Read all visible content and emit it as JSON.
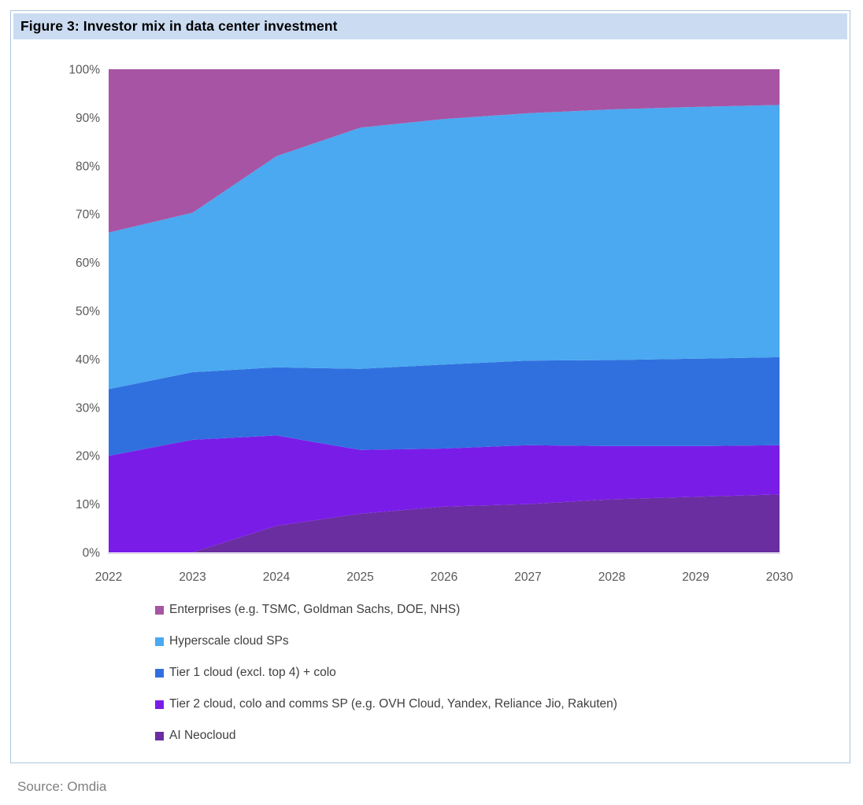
{
  "title": "Figure 3: Investor mix in data center investment",
  "source": "Source: Omdia",
  "colors": {
    "title_bar_bg": "#CBDCF2",
    "figure_border": "#ACC5E2",
    "axis_label_text": "#595959",
    "legend_text": "#3F3F3F",
    "source_text": "#7F7F7F",
    "axis_line": "#CCC8DC"
  },
  "chart_data": {
    "type": "area",
    "stacked": true,
    "unit": "percent",
    "title": "Figure 3: Investor mix in data center investment",
    "xlabel": "",
    "ylabel": "",
    "ylim": [
      0,
      100
    ],
    "grid": false,
    "legend_position": "bottom-left",
    "categories": [
      2022,
      2023,
      2024,
      2025,
      2026,
      2027,
      2028,
      2029,
      2030
    ],
    "x_tick_labels": [
      "2022",
      "2023",
      "2024",
      "2025",
      "2026",
      "2027",
      "2028",
      "2029",
      "2030"
    ],
    "y_tick_labels": [
      "0%",
      "10%",
      "20%",
      "30%",
      "40%",
      "50%",
      "60%",
      "70%",
      "80%",
      "90%",
      "100%"
    ],
    "stack_note": "series listed top-of-stack first; last series is bottom of stack",
    "series": [
      {
        "key": "enterprises",
        "name": "Enterprises (e.g. TSMC, Goldman Sachs, DOE, NHS)",
        "color": "#A754A4",
        "values": [
          33.8,
          29.7,
          18.0,
          12.1,
          10.3,
          9.1,
          8.3,
          7.8,
          7.4
        ]
      },
      {
        "key": "hyperscale-cloud-sps",
        "name": "Hyperscale cloud SPs",
        "color": "#4AA9F0",
        "values": [
          32.4,
          33.0,
          43.7,
          49.9,
          50.8,
          51.2,
          51.9,
          52.1,
          52.2
        ]
      },
      {
        "key": "tier1-cloud-colo",
        "name": "Tier 1 cloud (excl. top 4) + colo",
        "color": "#3070DE",
        "values": [
          13.8,
          14.0,
          14.1,
          16.8,
          17.4,
          17.5,
          17.8,
          18.1,
          18.2
        ]
      },
      {
        "key": "tier2-cloud-colo-comms",
        "name": "Tier 2 cloud, colo and comms SP (e.g. OVH Cloud, Yandex, Reliance Jio, Rakuten)",
        "color": "#7A1CE8",
        "values": [
          20.0,
          23.3,
          18.7,
          13.2,
          12.0,
          12.2,
          11.0,
          10.5,
          10.2
        ]
      },
      {
        "key": "ai-neocloud",
        "name": "AI Neocloud",
        "color": "#6A2EA0",
        "values": [
          0.0,
          0.0,
          5.5,
          8.0,
          9.5,
          10.0,
          11.0,
          11.5,
          12.0
        ]
      }
    ]
  }
}
